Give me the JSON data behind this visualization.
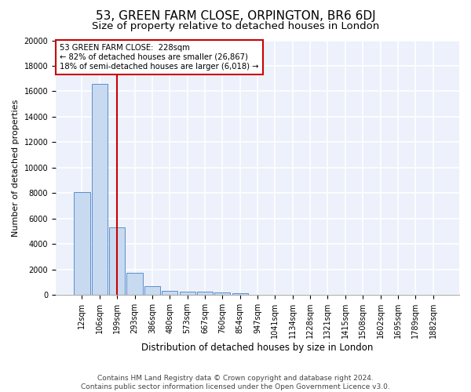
{
  "title": "53, GREEN FARM CLOSE, ORPINGTON, BR6 6DJ",
  "subtitle": "Size of property relative to detached houses in London",
  "xlabel": "Distribution of detached houses by size in London",
  "ylabel": "Number of detached properties",
  "bar_color": "#c8daf0",
  "bar_edge_color": "#5a8fcc",
  "vline_color": "#cc0000",
  "vline_x": 2,
  "annotation_text": "53 GREEN FARM CLOSE:  228sqm\n← 82% of detached houses are smaller (26,867)\n18% of semi-detached houses are larger (6,018) →",
  "annotation_box_color": "#cc0000",
  "categories": [
    "12sqm",
    "106sqm",
    "199sqm",
    "293sqm",
    "386sqm",
    "480sqm",
    "573sqm",
    "667sqm",
    "760sqm",
    "854sqm",
    "947sqm",
    "1041sqm",
    "1134sqm",
    "1228sqm",
    "1321sqm",
    "1415sqm",
    "1508sqm",
    "1602sqm",
    "1695sqm",
    "1789sqm",
    "1882sqm"
  ],
  "values": [
    8100,
    16600,
    5300,
    1750,
    700,
    350,
    280,
    230,
    200,
    155,
    0,
    0,
    0,
    0,
    0,
    0,
    0,
    0,
    0,
    0,
    0
  ],
  "ylim": [
    0,
    20000
  ],
  "yticks": [
    0,
    2000,
    4000,
    6000,
    8000,
    10000,
    12000,
    14000,
    16000,
    18000,
    20000
  ],
  "footer_text": "Contains HM Land Registry data © Crown copyright and database right 2024.\nContains public sector information licensed under the Open Government Licence v3.0.",
  "background_color": "#edf1fb",
  "grid_color": "#ffffff",
  "title_fontsize": 11,
  "subtitle_fontsize": 9.5,
  "xlabel_fontsize": 8.5,
  "ylabel_fontsize": 8,
  "tick_fontsize": 7,
  "footer_fontsize": 6.5
}
